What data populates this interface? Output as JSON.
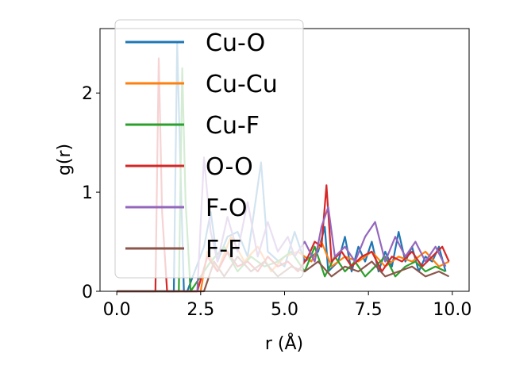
{
  "chart_data": {
    "type": "line",
    "title": "",
    "xlabel": "r (Å)",
    "ylabel": "g(r)",
    "xlim": [
      -0.5,
      10.5
    ],
    "ylim": [
      0,
      2.65
    ],
    "xticks": [
      0.0,
      2.5,
      5.0,
      7.5,
      10.0
    ],
    "xtick_labels": [
      "0.0",
      "2.5",
      "5.0",
      "7.5",
      "10.0"
    ],
    "yticks": [
      0,
      1,
      2
    ],
    "ytick_labels": [
      "0",
      "1",
      "2"
    ],
    "grid": false,
    "legend_position": "upper-left",
    "series": [
      {
        "name": "Cu-O",
        "color": "#1f77b4",
        "x": [
          0,
          1.7,
          1.8,
          1.9,
          2.0,
          2.1,
          2.6,
          2.8,
          3.0,
          3.3,
          3.6,
          3.9,
          4.3,
          4.5,
          5.0,
          5.3,
          5.6,
          6.0,
          6.2,
          6.3,
          6.6,
          6.8,
          7.0,
          7.2,
          7.4,
          7.6,
          7.8,
          8.0,
          8.2,
          8.4,
          8.6,
          8.8,
          9.0,
          9.2,
          9.4,
          9.6,
          9.8
        ],
        "y": [
          0,
          0,
          2.5,
          1.2,
          0,
          0,
          0.45,
          0.8,
          0.3,
          0.55,
          0.6,
          0.35,
          1.3,
          0.4,
          0.25,
          0.6,
          0.3,
          0.4,
          0.65,
          0.2,
          0.3,
          0.55,
          0.2,
          0.45,
          0.3,
          0.5,
          0.2,
          0.4,
          0.25,
          0.6,
          0.3,
          0.45,
          0.2,
          0.35,
          0.3,
          0.45,
          0.2
        ]
      },
      {
        "name": "Cu-Cu",
        "color": "#ff7f0e",
        "x": [
          0,
          2.5,
          2.7,
          3.0,
          3.4,
          3.8,
          4.2,
          4.6,
          5.0,
          5.4,
          5.8,
          6.1,
          6.4,
          6.8,
          7.2,
          7.6,
          8.0,
          8.4,
          8.8,
          9.2,
          9.6,
          9.9
        ],
        "y": [
          0,
          0,
          0.4,
          0.2,
          0.55,
          0.3,
          0.45,
          0.2,
          0.35,
          0.4,
          0.3,
          0.5,
          0.25,
          0.35,
          0.3,
          0.4,
          0.25,
          0.35,
          0.3,
          0.4,
          0.25,
          0.3
        ]
      },
      {
        "name": "Cu-F",
        "color": "#2ca02c",
        "x": [
          0,
          1.85,
          1.95,
          2.05,
          2.2,
          2.8,
          3.2,
          3.6,
          4.0,
          4.4,
          4.8,
          5.2,
          5.6,
          5.9,
          6.2,
          6.5,
          6.8,
          7.1,
          7.4,
          7.7,
          8.0,
          8.3,
          8.6,
          8.9,
          9.2,
          9.5,
          9.8
        ],
        "y": [
          0,
          0,
          2.25,
          0.9,
          0,
          0.3,
          0.45,
          0.2,
          0.35,
          0.25,
          0.3,
          0.4,
          0.2,
          0.45,
          0.15,
          0.35,
          0.2,
          0.3,
          0.15,
          0.25,
          0.35,
          0.15,
          0.25,
          0.3,
          0.2,
          0.25,
          0.2
        ]
      },
      {
        "name": "O-O",
        "color": "#d62728",
        "x": [
          0,
          1.15,
          1.25,
          1.35,
          1.5,
          2.4,
          2.7,
          3.0,
          3.3,
          3.6,
          3.9,
          4.2,
          4.5,
          4.8,
          5.1,
          5.4,
          5.7,
          5.9,
          6.1,
          6.25,
          6.4,
          6.7,
          7.0,
          7.3,
          7.6,
          7.9,
          8.2,
          8.5,
          8.8,
          9.1,
          9.4,
          9.7,
          9.9
        ],
        "y": [
          0,
          0,
          2.35,
          0.8,
          0,
          0,
          0.35,
          0.2,
          0.4,
          0.25,
          0.3,
          0.2,
          0.35,
          0.25,
          0.3,
          0.2,
          0.35,
          0.5,
          0.45,
          1.07,
          0.3,
          0.4,
          0.25,
          0.35,
          0.4,
          0.2,
          0.35,
          0.3,
          0.4,
          0.25,
          0.35,
          0.45,
          0.3
        ]
      },
      {
        "name": "F-O",
        "color": "#9467bd",
        "x": [
          0,
          2.4,
          2.6,
          2.8,
          3.0,
          3.3,
          3.6,
          3.9,
          4.2,
          4.5,
          4.8,
          5.1,
          5.3,
          5.6,
          5.9,
          6.1,
          6.3,
          6.5,
          6.8,
          7.1,
          7.4,
          7.7,
          8.0,
          8.3,
          8.6,
          8.9,
          9.2,
          9.5,
          9.8
        ],
        "y": [
          0,
          0,
          1.35,
          0.6,
          0.3,
          0.75,
          0.4,
          0.9,
          0.35,
          0.7,
          0.4,
          0.55,
          0.35,
          0.5,
          0.3,
          0.65,
          0.85,
          0.35,
          0.45,
          0.3,
          0.55,
          0.7,
          0.3,
          0.55,
          0.35,
          0.5,
          0.3,
          0.45,
          0.25
        ]
      },
      {
        "name": "F-F",
        "color": "#8c564b",
        "x": [
          0,
          2.6,
          2.9,
          3.2,
          3.6,
          4.0,
          4.4,
          4.8,
          5.2,
          5.6,
          6.0,
          6.4,
          6.8,
          7.2,
          7.6,
          8.0,
          8.4,
          8.8,
          9.2,
          9.6,
          9.9
        ],
        "y": [
          0,
          0,
          0.3,
          0.15,
          0.35,
          0.2,
          0.3,
          0.15,
          0.25,
          0.2,
          0.3,
          0.15,
          0.25,
          0.2,
          0.3,
          0.15,
          0.2,
          0.25,
          0.15,
          0.2,
          0.15
        ]
      }
    ]
  }
}
